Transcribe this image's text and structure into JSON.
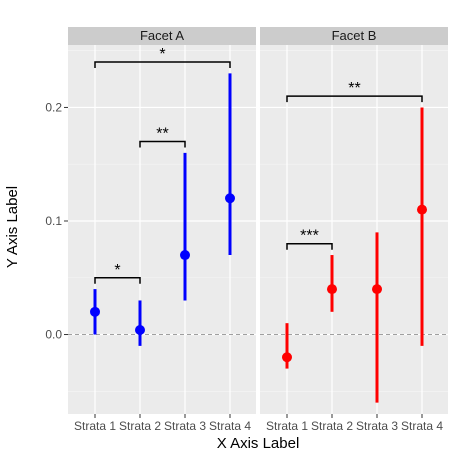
{
  "chart_data": {
    "type": "scatter",
    "subtype": "pointrange",
    "xlabel": "X Axis Label",
    "ylabel": "Y Axis Label",
    "categories": [
      "Strata 1",
      "Strata 2",
      "Strata 3",
      "Strata 4"
    ],
    "ylim": [
      -0.07,
      0.255
    ],
    "yticks": [
      0.0,
      0.1,
      0.2
    ],
    "ytick_labels": [
      "0.0",
      "0.1",
      "0.2"
    ],
    "reference_line": {
      "y": 0.0,
      "style": "dashed"
    },
    "grid": true,
    "facets": [
      {
        "title": "Facet A",
        "color": "#0000ff",
        "points": [
          {
            "x": "Strata 1",
            "y": 0.02,
            "ymin": 0.0,
            "ymax": 0.04
          },
          {
            "x": "Strata 2",
            "y": 0.004,
            "ymin": -0.01,
            "ymax": 0.03
          },
          {
            "x": "Strata 3",
            "y": 0.07,
            "ymin": 0.03,
            "ymax": 0.16
          },
          {
            "x": "Strata 4",
            "y": 0.12,
            "ymin": 0.07,
            "ymax": 0.23
          }
        ],
        "brackets": [
          {
            "from": "Strata 1",
            "to": "Strata 2",
            "y": 0.05,
            "label": "*"
          },
          {
            "from": "Strata 2",
            "to": "Strata 3",
            "y": 0.17,
            "label": "**"
          },
          {
            "from": "Strata 1",
            "to": "Strata 4",
            "y": 0.24,
            "label": "*"
          }
        ]
      },
      {
        "title": "Facet B",
        "color": "#ff0000",
        "points": [
          {
            "x": "Strata 1",
            "y": -0.02,
            "ymin": -0.03,
            "ymax": 0.01
          },
          {
            "x": "Strata 2",
            "y": 0.04,
            "ymin": 0.02,
            "ymax": 0.07
          },
          {
            "x": "Strata 3",
            "y": 0.04,
            "ymin": -0.06,
            "ymax": 0.09
          },
          {
            "x": "Strata 4",
            "y": 0.11,
            "ymin": -0.01,
            "ymax": 0.2
          }
        ],
        "brackets": [
          {
            "from": "Strata 1",
            "to": "Strata 2",
            "y": 0.08,
            "label": "***"
          },
          {
            "from": "Strata 1",
            "to": "Strata 4",
            "y": 0.21,
            "label": "**"
          }
        ]
      }
    ]
  }
}
